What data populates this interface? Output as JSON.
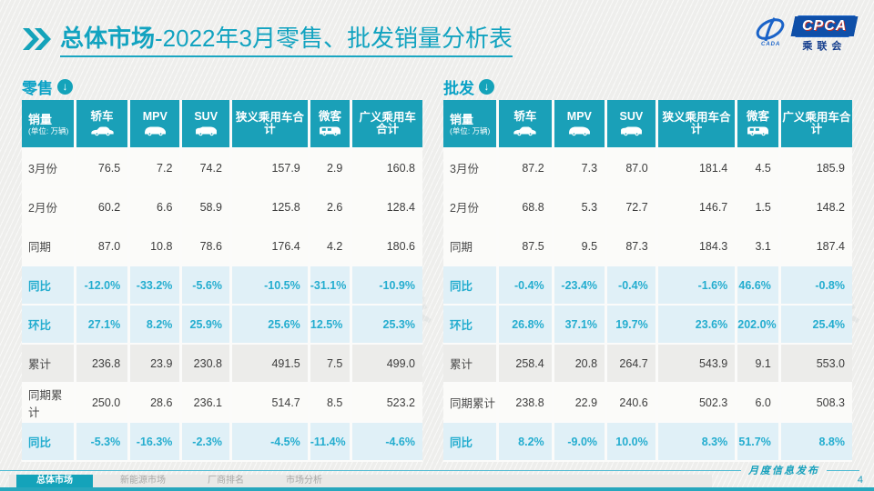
{
  "header": {
    "title_bold": "总体市场",
    "title_rest": "-2022年3月零售、批发销量分析表",
    "logo": {
      "cpca": "CPCA",
      "cada": "CADA",
      "name_cn": "乘联会"
    }
  },
  "icons": {
    "down_arrow": "↓"
  },
  "watermark": "CPCA 乘联会",
  "colors": {
    "teal_header": "#1aa0b8",
    "pct_text": "#24adcf",
    "pct_row_bg": "#e0f0f7",
    "accent": "#12a3c0"
  },
  "tables": [
    {
      "section_label": "零售",
      "first_col": {
        "title": "销量",
        "subtitle": "(单位: 万辆)"
      },
      "columns": [
        {
          "label": "轿车",
          "icon": "sedan-icon"
        },
        {
          "label": "MPV",
          "icon": "mpv-icon"
        },
        {
          "label": "SUV",
          "icon": "suv-icon"
        },
        {
          "label": "狭义乘用车合计",
          "icon": null
        },
        {
          "label": "微客",
          "icon": "van-icon"
        },
        {
          "label": "广义乘用车合计",
          "icon": null
        }
      ],
      "rows": [
        {
          "label": "3月份",
          "type": "data",
          "values": [
            "76.5",
            "7.2",
            "74.2",
            "157.9",
            "2.9",
            "160.8"
          ]
        },
        {
          "label": "2月份",
          "type": "data",
          "values": [
            "60.2",
            "6.6",
            "58.9",
            "125.8",
            "2.6",
            "128.4"
          ]
        },
        {
          "label": "同期",
          "type": "data",
          "values": [
            "87.0",
            "10.8",
            "78.6",
            "176.4",
            "4.2",
            "180.6"
          ]
        },
        {
          "label": "同比",
          "type": "pct",
          "values": [
            "-12.0%",
            "-33.2%",
            "-5.6%",
            "-10.5%",
            "-31.1%",
            "-10.9%"
          ]
        },
        {
          "label": "环比",
          "type": "pct",
          "values": [
            "27.1%",
            "8.2%",
            "25.9%",
            "25.6%",
            "12.5%",
            "25.3%"
          ]
        },
        {
          "label": "累计",
          "type": "alt",
          "values": [
            "236.8",
            "23.9",
            "230.8",
            "491.5",
            "7.5",
            "499.0"
          ]
        },
        {
          "label": "同期累计",
          "type": "data",
          "values": [
            "250.0",
            "28.6",
            "236.1",
            "514.7",
            "8.5",
            "523.2"
          ]
        },
        {
          "label": "同比",
          "type": "pct",
          "values": [
            "-5.3%",
            "-16.3%",
            "-2.3%",
            "-4.5%",
            "-11.4%",
            "-4.6%"
          ]
        }
      ]
    },
    {
      "section_label": "批发",
      "first_col": {
        "title": "销量",
        "subtitle": "(单位: 万辆)"
      },
      "columns": [
        {
          "label": "轿车",
          "icon": "sedan-icon"
        },
        {
          "label": "MPV",
          "icon": "mpv-icon"
        },
        {
          "label": "SUV",
          "icon": "suv-icon"
        },
        {
          "label": "狭义乘用车合计",
          "icon": null
        },
        {
          "label": "微客",
          "icon": "van-icon"
        },
        {
          "label": "广义乘用车合计",
          "icon": null
        }
      ],
      "rows": [
        {
          "label": "3月份",
          "type": "data",
          "values": [
            "87.2",
            "7.3",
            "87.0",
            "181.4",
            "4.5",
            "185.9"
          ]
        },
        {
          "label": "2月份",
          "type": "data",
          "values": [
            "68.8",
            "5.3",
            "72.7",
            "146.7",
            "1.5",
            "148.2"
          ]
        },
        {
          "label": "同期",
          "type": "data",
          "values": [
            "87.5",
            "9.5",
            "87.3",
            "184.3",
            "3.1",
            "187.4"
          ]
        },
        {
          "label": "同比",
          "type": "pct",
          "values": [
            "-0.4%",
            "-23.4%",
            "-0.4%",
            "-1.6%",
            "46.6%",
            "-0.8%"
          ]
        },
        {
          "label": "环比",
          "type": "pct",
          "values": [
            "26.8%",
            "37.1%",
            "19.7%",
            "23.6%",
            "202.0%",
            "25.4%"
          ]
        },
        {
          "label": "累计",
          "type": "alt",
          "values": [
            "258.4",
            "20.8",
            "264.7",
            "543.9",
            "9.1",
            "553.0"
          ]
        },
        {
          "label": "同期累计",
          "type": "data",
          "values": [
            "238.8",
            "22.9",
            "240.6",
            "502.3",
            "6.0",
            "508.3"
          ]
        },
        {
          "label": "同比",
          "type": "pct",
          "values": [
            "8.2%",
            "-9.0%",
            "10.0%",
            "8.3%",
            "51.7%",
            "8.8%"
          ]
        }
      ]
    }
  ],
  "footer": {
    "tabs": [
      {
        "label": "总体市场",
        "active": true
      },
      {
        "label": "新能源市场",
        "active": false
      },
      {
        "label": "厂商排名",
        "active": false
      },
      {
        "label": "市场分析",
        "active": false
      }
    ],
    "release_note": "月度信息发布",
    "page_number": "4"
  }
}
